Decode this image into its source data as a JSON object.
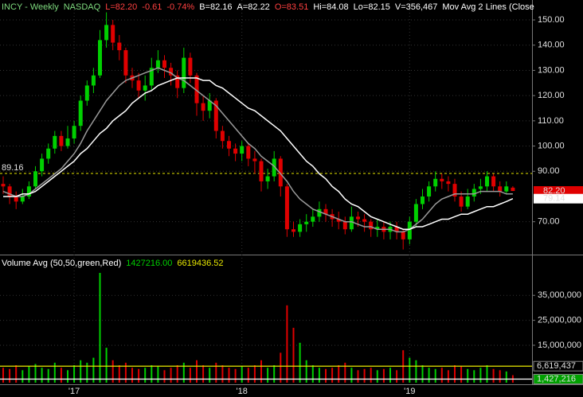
{
  "chart_data": [
    {
      "type": "candlestick",
      "header": [
        {
          "text": "INCY - Weekly",
          "color": "#7fdc7f"
        },
        {
          "text": "NASDAQ",
          "color": "#7fdc7f"
        },
        {
          "text": "L=82.20",
          "color": "#ff4040"
        },
        {
          "text": "-0.61",
          "color": "#ff4040"
        },
        {
          "text": "-0.74%",
          "color": "#ff4040"
        },
        {
          "text": "B=82.16",
          "color": "#ffffff"
        },
        {
          "text": "A=82.22",
          "color": "#ffffff"
        },
        {
          "text": "O=83.51",
          "color": "#ff4040"
        },
        {
          "text": "Hi=84.08",
          "color": "#ffffff"
        },
        {
          "text": "Lo=82.15",
          "color": "#ffffff"
        },
        {
          "text": "V=356,467",
          "color": "#ffffff"
        },
        {
          "text": "Mov Avg 2 Lines (Close",
          "color": "#ffffff"
        }
      ],
      "categories": [
        null,
        null,
        null,
        null,
        null,
        null,
        null,
        null,
        null,
        null,
        null,
        "'17",
        null,
        null,
        null,
        null,
        null,
        null,
        null,
        null,
        null,
        null,
        null,
        null,
        null,
        null,
        null,
        null,
        null,
        null,
        null,
        null,
        null,
        null,
        null,
        null,
        null,
        "'18",
        null,
        null,
        null,
        null,
        null,
        null,
        null,
        null,
        null,
        null,
        null,
        null,
        null,
        null,
        null,
        null,
        null,
        null,
        null,
        null,
        null,
        null,
        null,
        null,
        null,
        "'19",
        null,
        null,
        null,
        null,
        null,
        null,
        null,
        null,
        null,
        null,
        null,
        null,
        null,
        null,
        null,
        null
      ],
      "open": [
        85,
        84,
        80,
        78,
        80,
        84,
        90,
        95,
        99,
        104,
        100,
        103,
        108,
        118,
        124,
        128,
        142,
        148,
        141,
        138,
        128,
        126,
        122,
        124,
        131,
        134,
        131,
        128,
        123,
        135,
        128,
        117,
        114,
        118,
        106,
        102,
        99,
        97,
        100,
        95,
        94,
        86,
        88,
        95,
        84,
        67,
        66,
        69,
        70,
        72,
        75,
        73,
        71,
        70,
        67,
        72,
        71,
        70,
        67,
        68,
        66,
        68,
        66,
        63,
        70,
        77,
        80,
        84,
        87,
        86,
        85,
        80,
        76,
        80,
        83,
        84,
        88,
        84,
        82,
        83.51
      ],
      "high": [
        88,
        85,
        82,
        83,
        86,
        92,
        97,
        101,
        106,
        106,
        108,
        110,
        120,
        126,
        131,
        146,
        153,
        150,
        144,
        139,
        131,
        129,
        128,
        135,
        138,
        136,
        133,
        130,
        139,
        137,
        129,
        120,
        121,
        119,
        108,
        104,
        101,
        102,
        101,
        98,
        95,
        91,
        98,
        96,
        85,
        70,
        71,
        73,
        75,
        78,
        77,
        75,
        74,
        72,
        76,
        74,
        73,
        71,
        71,
        70,
        70,
        70,
        67,
        72,
        79,
        83,
        86,
        90,
        89,
        88,
        87,
        82,
        83,
        85,
        87,
        90,
        89,
        86,
        86,
        84.08
      ],
      "low": [
        81,
        77,
        75,
        77,
        79,
        83,
        88,
        93,
        97,
        98,
        99,
        101,
        106,
        116,
        121,
        127,
        139,
        138,
        134,
        125,
        123,
        119,
        118,
        122,
        129,
        127,
        124,
        119,
        121,
        125,
        112,
        110,
        111,
        103,
        99,
        96,
        94,
        94,
        92,
        89,
        82,
        83,
        86,
        80,
        64,
        64,
        64,
        66,
        68,
        70,
        70,
        68,
        67,
        65,
        66,
        68,
        66,
        64,
        64,
        63,
        63,
        63,
        59,
        61,
        68,
        75,
        78,
        82,
        83,
        82,
        78,
        74,
        75,
        78,
        81,
        82,
        82,
        80,
        81,
        82.15
      ],
      "close": [
        84,
        80,
        78,
        80,
        84,
        90,
        95,
        99,
        104,
        100,
        103,
        108,
        118,
        124,
        128,
        142,
        148,
        141,
        138,
        128,
        126,
        122,
        124,
        131,
        134,
        131,
        128,
        123,
        135,
        128,
        117,
        114,
        118,
        106,
        102,
        99,
        97,
        100,
        95,
        94,
        86,
        88,
        95,
        84,
        67,
        66,
        69,
        70,
        72,
        75,
        73,
        71,
        70,
        67,
        72,
        71,
        70,
        67,
        68,
        66,
        68,
        66,
        63,
        70,
        77,
        80,
        84,
        87,
        86,
        85,
        80,
        76,
        80,
        83,
        84,
        88,
        84,
        82,
        84,
        82.2
      ],
      "up_color": "#00d000",
      "down_color": "#e00000",
      "moving_averages": [
        {
          "color": "#9a9a9a",
          "values": [
            82,
            81,
            80,
            80,
            81,
            83,
            85,
            87,
            89,
            91,
            94,
            97,
            101,
            106,
            110,
            114,
            118,
            121,
            124,
            126,
            127,
            128,
            129,
            130,
            131,
            130,
            129,
            127,
            126,
            124,
            122,
            120,
            118,
            116,
            113,
            110,
            107,
            104,
            101,
            99,
            96,
            94,
            92,
            89,
            86,
            82,
            79,
            77,
            75,
            74,
            73,
            72,
            71,
            70,
            70,
            69,
            68,
            68,
            67,
            67,
            67,
            66,
            66,
            67,
            69,
            71,
            74,
            77,
            79,
            80,
            81,
            81,
            81,
            81,
            82,
            82,
            82,
            82,
            81,
            81
          ]
        },
        {
          "color": "#ffffff",
          "values": [
            80,
            80,
            80,
            81,
            81,
            82,
            84,
            86,
            88,
            90,
            92,
            94,
            97,
            99,
            102,
            105,
            107,
            110,
            112,
            114,
            117,
            119,
            121,
            122,
            124,
            125,
            126,
            127,
            127,
            127,
            127,
            126,
            126,
            124,
            123,
            121,
            119,
            117,
            115,
            114,
            112,
            110,
            108,
            106,
            103,
            100,
            97,
            94,
            92,
            89,
            87,
            84,
            82,
            79,
            77,
            76,
            74,
            72,
            71,
            70,
            69,
            68,
            67,
            67,
            68,
            68,
            69,
            70,
            71,
            71,
            72,
            73,
            73,
            74,
            75,
            76,
            76,
            77,
            78,
            79.14
          ]
        }
      ],
      "price_labels": [
        {
          "value": 82.2,
          "label": "82.20",
          "background": "#e00000",
          "color": "#ffffff"
        },
        {
          "value": 79.14,
          "label": "79.14",
          "background": "#ffffff",
          "color": "#000000"
        }
      ],
      "reference_line": {
        "value": 89.16,
        "label": "89.16",
        "color": "#e8e800"
      },
      "ylim": [
        57.6,
        157.9
      ],
      "yticks": [
        {
          "value": 70,
          "label": "70.00"
        },
        {
          "value": 90,
          "label": "90.00"
        },
        {
          "value": 100,
          "label": "100.00"
        },
        {
          "value": 110,
          "label": "110.00"
        },
        {
          "value": 120,
          "label": "120.00"
        },
        {
          "value": 130,
          "label": "130.00"
        },
        {
          "value": 140,
          "label": "140.00"
        },
        {
          "value": 150,
          "label": "150.00"
        }
      ],
      "grid": true
    },
    {
      "type": "bar",
      "header": [
        {
          "text": "Volume Avg (50,50,green,Red)",
          "color": "#ffffff"
        },
        {
          "text": "1427216.00",
          "color": "#00d000"
        },
        {
          "text": "6619436.52",
          "color": "#e8e800"
        }
      ],
      "values": [
        6000000,
        5500000,
        7000000,
        5000000,
        6500000,
        7500000,
        6000000,
        5500000,
        8000000,
        6000000,
        5000000,
        7000000,
        9000000,
        8000000,
        10000000,
        44000000,
        14000000,
        9000000,
        7000000,
        8000000,
        6000000,
        5500000,
        6000000,
        7000000,
        6500000,
        5000000,
        6000000,
        7000000,
        8000000,
        6000000,
        9000000,
        7000000,
        6000000,
        8000000,
        7000000,
        6000000,
        5500000,
        6500000,
        6000000,
        7000000,
        9000000,
        6000000,
        7000000,
        12000000,
        31000000,
        22000000,
        16000000,
        9000000,
        7000000,
        6000000,
        5500000,
        6000000,
        7000000,
        8000000,
        6000000,
        5000000,
        5500000,
        6000000,
        5000000,
        5500000,
        6000000,
        5000000,
        13000000,
        10000000,
        9000000,
        7000000,
        6000000,
        5500000,
        6000000,
        5000000,
        7000000,
        6500000,
        5500000,
        5000000,
        6000000,
        7000000,
        5500000,
        5000000,
        4500000,
        3000000
      ],
      "averages": [
        {
          "value": 6619436.52,
          "label": "6,619,437",
          "color": "#e8e800",
          "background": "#000000"
        },
        {
          "value": 1427216.0,
          "label": "1,427,216",
          "color": "#ffffff",
          "background": "#00a000"
        }
      ],
      "ylim": [
        0,
        50700000
      ],
      "yticks": [
        {
          "value": 15000000,
          "label": "15,000,000"
        },
        {
          "value": 25000000,
          "label": "25,000,000"
        },
        {
          "value": 35000000,
          "label": "35,000,000"
        }
      ],
      "grid": true
    }
  ]
}
